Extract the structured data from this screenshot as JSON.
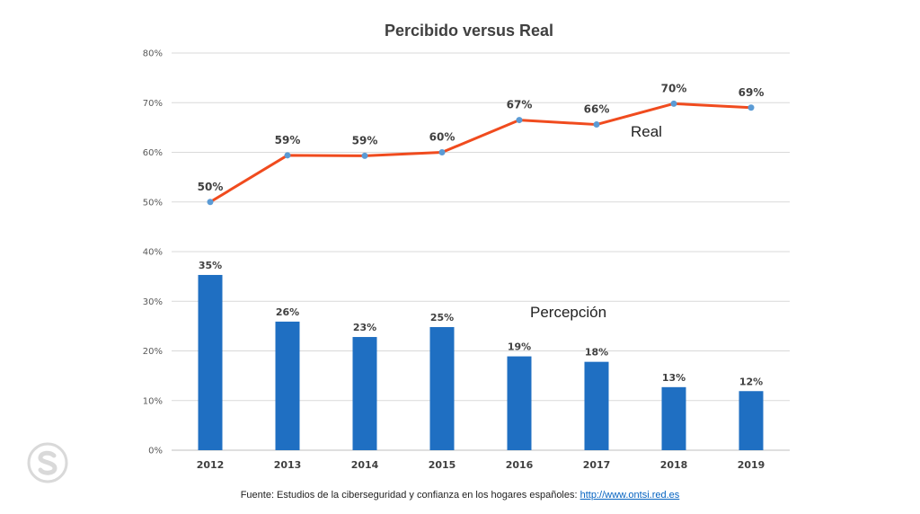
{
  "chart_data": {
    "type": "bar+line",
    "title": "Percibido versus Real",
    "categories": [
      "2012",
      "2013",
      "2014",
      "2015",
      "2016",
      "2017",
      "2018",
      "2019"
    ],
    "ylim": [
      0,
      80
    ],
    "yticks": [
      "0%",
      "10%",
      "20%",
      "30%",
      "40%",
      "50%",
      "60%",
      "70%",
      "80%"
    ],
    "grid": true,
    "series": [
      {
        "name": "Real",
        "type": "line",
        "values": [
          50,
          59.4,
          59.3,
          60,
          66.5,
          65.6,
          69.8,
          69
        ],
        "labels": [
          "50%",
          "59%",
          "59%",
          "60%",
          "67%",
          "66%",
          "70%",
          "69%"
        ],
        "color": "#f04b1e",
        "marker_color": "#5b9bd5"
      },
      {
        "name": "Percepción",
        "type": "bar",
        "values": [
          35.3,
          25.9,
          22.8,
          24.8,
          18.9,
          17.8,
          12.7,
          11.9
        ],
        "labels": [
          "35%",
          "26%",
          "23%",
          "25%",
          "19%",
          "18%",
          "13%",
          "12%"
        ],
        "color": "#1f6fc2"
      }
    ]
  },
  "footer": {
    "text": "Fuente:  Estudios de la ciberseguridad y confianza en los hogares españoles: ",
    "link": "http://www.ontsi.red.es"
  },
  "logo": {
    "icon": "skype-logo-icon"
  }
}
